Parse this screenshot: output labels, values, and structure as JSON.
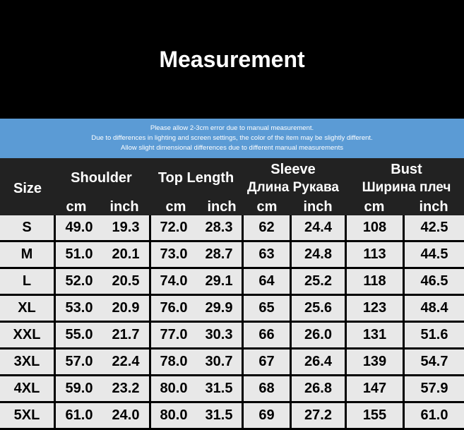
{
  "title": "Measurement",
  "notice": [
    "Please allow 2-3cm error due to manual measurement.",
    "Due to differences in lighting and screen settings, the color of the item may be slightly different.",
    "Allow slight dimensional differences due to different manual measurements"
  ],
  "headers": {
    "size": "Size",
    "shoulder": "Shoulder",
    "top_length": "Top Length",
    "sleeve": "Sleeve",
    "sleeve_ru": "Длина Рукава",
    "bust": "Bust",
    "bust_ru": "Ширина плеч",
    "units": [
      "cm",
      "inch",
      "cm",
      "inch",
      "cm",
      "inch",
      "cm",
      "inch"
    ]
  },
  "colors": {
    "banner": "#5b9bd5",
    "header": "#222222",
    "cell": "#e8e8e8"
  },
  "rows": [
    [
      "S",
      "49.0",
      "19.3",
      "72.0",
      "28.3",
      "62",
      "24.4",
      "108",
      "42.5"
    ],
    [
      "M",
      "51.0",
      "20.1",
      "73.0",
      "28.7",
      "63",
      "24.8",
      "113",
      "44.5"
    ],
    [
      "L",
      "52.0",
      "20.5",
      "74.0",
      "29.1",
      "64",
      "25.2",
      "118",
      "46.5"
    ],
    [
      "XL",
      "53.0",
      "20.9",
      "76.0",
      "29.9",
      "65",
      "25.6",
      "123",
      "48.4"
    ],
    [
      "XXL",
      "55.0",
      "21.7",
      "77.0",
      "30.3",
      "66",
      "26.0",
      "131",
      "51.6"
    ],
    [
      "3XL",
      "57.0",
      "22.4",
      "78.0",
      "30.7",
      "67",
      "26.4",
      "139",
      "54.7"
    ],
    [
      "4XL",
      "59.0",
      "23.2",
      "80.0",
      "31.5",
      "68",
      "26.8",
      "147",
      "57.9"
    ],
    [
      "5XL",
      "61.0",
      "24.0",
      "80.0",
      "31.5",
      "69",
      "27.2",
      "155",
      "61.0"
    ]
  ]
}
